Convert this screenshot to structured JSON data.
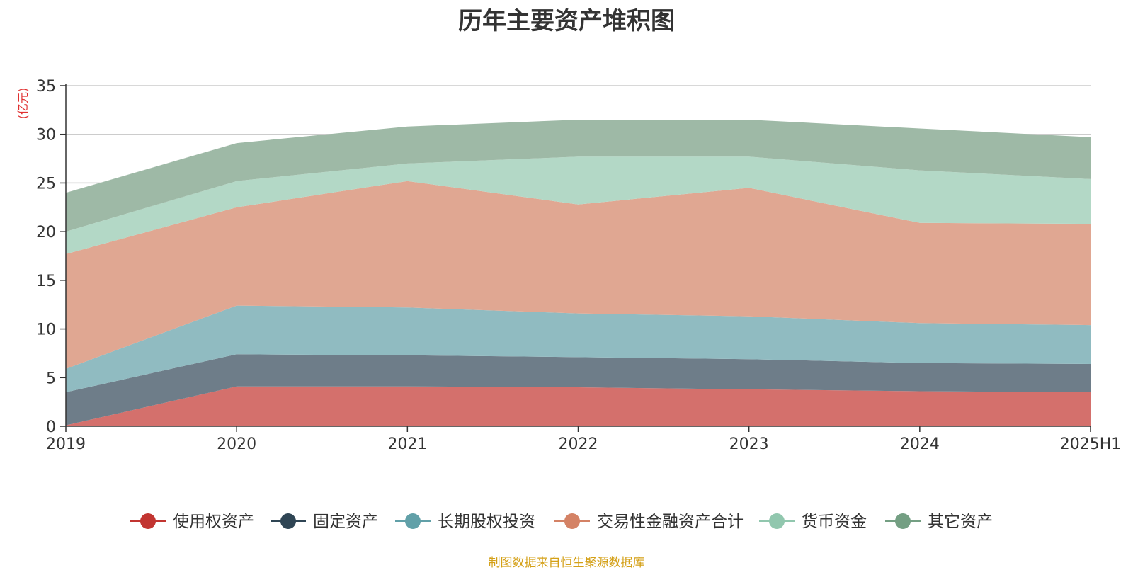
{
  "chart_data": {
    "type": "area",
    "stacked": true,
    "title": "历年主要资产堆积图",
    "unit_label": "(亿元)",
    "categories": [
      "2019",
      "2020",
      "2021",
      "2022",
      "2023",
      "2024",
      "2025H1"
    ],
    "ylim": [
      0,
      35
    ],
    "yticks": [
      "0",
      "5",
      "10",
      "15",
      "20",
      "25",
      "30",
      "35"
    ],
    "grid": true,
    "legend_position": "bottom",
    "series": [
      {
        "name": "使用权资产",
        "color": "#c23531",
        "area_color": "#d4706c",
        "values": [
          0.1,
          4.1,
          4.1,
          4.0,
          3.8,
          3.6,
          3.5
        ]
      },
      {
        "name": "固定资产",
        "color": "#2f4554",
        "area_color": "#6e7d89",
        "values": [
          3.4,
          3.3,
          3.2,
          3.1,
          3.1,
          2.9,
          2.9
        ]
      },
      {
        "name": "长期股权投资",
        "color": "#61a0a8",
        "area_color": "#90bbc1",
        "values": [
          2.4,
          5.0,
          4.9,
          4.5,
          4.4,
          4.1,
          4.0
        ]
      },
      {
        "name": "交易性金融资产合计",
        "color": "#d48265",
        "area_color": "#e0a792",
        "values": [
          11.8,
          10.1,
          13.0,
          11.2,
          13.2,
          10.3,
          10.4
        ]
      },
      {
        "name": "货币资金",
        "color": "#91c7ae",
        "area_color": "#b3d8c6",
        "values": [
          2.3,
          2.7,
          1.8,
          4.9,
          3.2,
          5.4,
          4.6
        ]
      },
      {
        "name": "其它资产",
        "color": "#749f83",
        "area_color": "#9eb9a6",
        "values": [
          4.0,
          3.9,
          3.8,
          3.8,
          3.8,
          4.3,
          4.3
        ]
      }
    ]
  },
  "source_note": "制图数据来自恒生聚源数据库"
}
